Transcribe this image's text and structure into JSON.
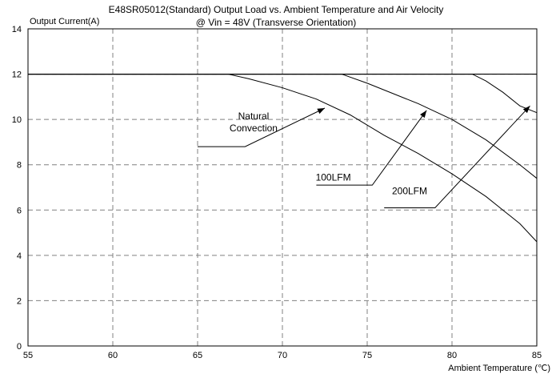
{
  "chart_data": {
    "type": "line",
    "title": "E48SR05012(Standard)  Output Load vs. Ambient Temperature and Air Velocity",
    "subtitle": "@ Vin = 48V (Transverse Orientation)",
    "xlabel": "Ambient Temperature (℃)",
    "ylabel": "Output Current(A)",
    "xlim": [
      55,
      85
    ],
    "ylim": [
      0,
      14
    ],
    "xticks": [
      55,
      60,
      65,
      70,
      75,
      80,
      85
    ],
    "yticks": [
      0,
      2,
      4,
      6,
      8,
      10,
      12,
      14
    ],
    "grid": true,
    "legend": "none",
    "series": [
      {
        "name": "Natural Convection",
        "x": [
          55,
          66.8,
          68,
          70,
          72,
          74,
          76,
          78,
          80,
          82,
          84,
          85
        ],
        "y": [
          12,
          12,
          11.8,
          11.4,
          10.9,
          10.2,
          9.3,
          8.5,
          7.6,
          6.6,
          5.4,
          4.6
        ]
      },
      {
        "name": "100LFM",
        "x": [
          55,
          73.5,
          75,
          76,
          78,
          80,
          82,
          84,
          85
        ],
        "y": [
          12,
          12,
          11.6,
          11.3,
          10.7,
          10.0,
          9.1,
          8.0,
          7.4
        ]
      },
      {
        "name": "200LFM",
        "x": [
          55,
          81.2,
          82,
          83,
          84,
          85
        ],
        "y": [
          12,
          12,
          11.7,
          11.2,
          10.6,
          10.3
        ]
      }
    ],
    "flat_line": {
      "x": [
        55,
        85
      ],
      "y": [
        12,
        12
      ]
    },
    "annotations": [
      {
        "lines": [
          "Natural",
          "Convection"
        ],
        "target": [
          72.5,
          10.5
        ],
        "label_pos": [
          68.3,
          10.0
        ],
        "elbow": [
          67.8,
          8.8
        ],
        "tail": [
          65.0,
          8.8
        ]
      },
      {
        "lines": [
          "100LFM"
        ],
        "target": [
          78.5,
          10.4
        ],
        "label_pos": [
          73.0,
          7.3
        ],
        "elbow": [
          75.3,
          7.1
        ],
        "tail": [
          72.0,
          7.1
        ]
      },
      {
        "lines": [
          "200LFM"
        ],
        "target": [
          84.6,
          10.6
        ],
        "label_pos": [
          77.5,
          6.7
        ],
        "elbow": [
          79.0,
          6.1
        ],
        "tail": [
          76.0,
          6.1
        ]
      }
    ]
  }
}
